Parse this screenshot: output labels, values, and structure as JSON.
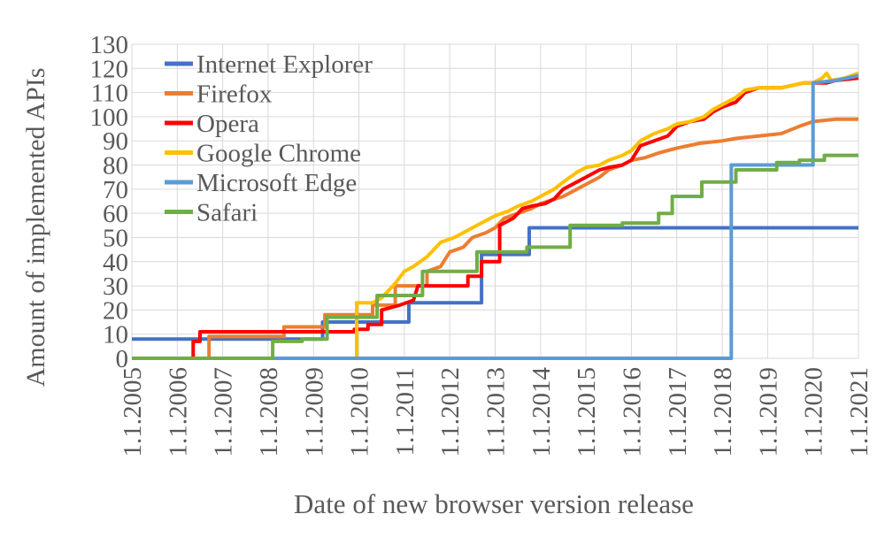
{
  "chart_data": {
    "type": "line",
    "title": "",
    "xlabel": "Date of new browser version release",
    "ylabel": "Amount of implemented APIs",
    "xlim": [
      2005,
      2021
    ],
    "ylim": [
      0,
      130
    ],
    "y_ticks": [
      0,
      10,
      20,
      30,
      40,
      50,
      60,
      70,
      80,
      90,
      100,
      110,
      120,
      130
    ],
    "x_ticks": [
      2005,
      2006,
      2007,
      2008,
      2009,
      2010,
      2011,
      2012,
      2013,
      2014,
      2015,
      2016,
      2017,
      2018,
      2019,
      2020,
      2021
    ],
    "x_tick_labels": [
      "1.1.2005",
      "1.1.2006",
      "1.1.2007",
      "1.1.2008",
      "1.1.2009",
      "1.1.2010",
      "1.1.2011",
      "1.1.2012",
      "1.1.2013",
      "1.1.2014",
      "1.1.2015",
      "1.1.2016",
      "1.1.2017",
      "1.1.2018",
      "1.1.2019",
      "1.1.2020",
      "1.1.2021"
    ],
    "grid": true,
    "legend_position": "top-left",
    "series": [
      {
        "name": "Internet Explorer",
        "color": "#4472C4",
        "points": [
          [
            2005.0,
            8
          ],
          [
            2009.2,
            8
          ],
          [
            2009.2,
            15
          ],
          [
            2011.1,
            15
          ],
          [
            2011.1,
            23
          ],
          [
            2012.7,
            23
          ],
          [
            2012.7,
            43
          ],
          [
            2013.75,
            43
          ],
          [
            2013.75,
            54
          ],
          [
            2021.0,
            54
          ]
        ]
      },
      {
        "name": "Firefox",
        "color": "#ED7D31",
        "points": [
          [
            2005.0,
            0
          ],
          [
            2006.7,
            0
          ],
          [
            2006.7,
            9
          ],
          [
            2008.35,
            9
          ],
          [
            2008.35,
            13
          ],
          [
            2009.25,
            13
          ],
          [
            2009.25,
            18
          ],
          [
            2010.3,
            18
          ],
          [
            2010.3,
            22
          ],
          [
            2010.8,
            22
          ],
          [
            2010.8,
            30
          ],
          [
            2011.5,
            30
          ],
          [
            2011.5,
            36
          ],
          [
            2011.8,
            38
          ],
          [
            2012.0,
            44
          ],
          [
            2012.3,
            46
          ],
          [
            2012.5,
            50
          ],
          [
            2012.8,
            52
          ],
          [
            2013.0,
            54
          ],
          [
            2013.2,
            58
          ],
          [
            2013.5,
            60
          ],
          [
            2013.8,
            62
          ],
          [
            2014.0,
            64
          ],
          [
            2014.5,
            67
          ],
          [
            2014.8,
            70
          ],
          [
            2015.0,
            72
          ],
          [
            2015.3,
            75
          ],
          [
            2015.5,
            78
          ],
          [
            2015.8,
            80
          ],
          [
            2016.0,
            82
          ],
          [
            2016.3,
            83
          ],
          [
            2016.6,
            85
          ],
          [
            2017.0,
            87
          ],
          [
            2017.5,
            89
          ],
          [
            2018.0,
            90
          ],
          [
            2018.3,
            91
          ],
          [
            2018.8,
            92
          ],
          [
            2019.3,
            93
          ],
          [
            2019.7,
            96
          ],
          [
            2020.0,
            98
          ],
          [
            2020.5,
            99
          ],
          [
            2021.0,
            99
          ]
        ]
      },
      {
        "name": "Opera",
        "color": "#FF0000",
        "points": [
          [
            2005.0,
            0
          ],
          [
            2006.35,
            0
          ],
          [
            2006.35,
            7
          ],
          [
            2006.5,
            7
          ],
          [
            2006.5,
            11
          ],
          [
            2009.9,
            11
          ],
          [
            2009.9,
            12
          ],
          [
            2010.2,
            12
          ],
          [
            2010.2,
            14
          ],
          [
            2010.5,
            14
          ],
          [
            2010.5,
            20
          ],
          [
            2010.9,
            22
          ],
          [
            2011.2,
            24
          ],
          [
            2011.3,
            30
          ],
          [
            2012.0,
            30
          ],
          [
            2012.4,
            30
          ],
          [
            2012.4,
            34
          ],
          [
            2012.7,
            34
          ],
          [
            2012.7,
            40
          ],
          [
            2013.1,
            40
          ],
          [
            2013.1,
            55
          ],
          [
            2013.4,
            58
          ],
          [
            2013.6,
            62
          ],
          [
            2013.8,
            63
          ],
          [
            2014.1,
            64
          ],
          [
            2014.3,
            66
          ],
          [
            2014.5,
            70
          ],
          [
            2014.8,
            73
          ],
          [
            2015.0,
            75
          ],
          [
            2015.3,
            78
          ],
          [
            2015.5,
            79
          ],
          [
            2015.8,
            80
          ],
          [
            2016.0,
            82
          ],
          [
            2016.2,
            88
          ],
          [
            2016.5,
            90
          ],
          [
            2016.8,
            92
          ],
          [
            2017.0,
            96
          ],
          [
            2017.3,
            98
          ],
          [
            2017.6,
            99
          ],
          [
            2017.8,
            102
          ],
          [
            2018.0,
            104
          ],
          [
            2018.3,
            106
          ],
          [
            2018.5,
            110
          ],
          [
            2018.8,
            112
          ],
          [
            2019.3,
            112
          ],
          [
            2019.8,
            114
          ],
          [
            2020.0,
            114
          ],
          [
            2020.3,
            114
          ],
          [
            2020.5,
            115
          ],
          [
            2021.0,
            116
          ]
        ]
      },
      {
        "name": "Google Chrome",
        "color": "#FFC000",
        "points": [
          [
            2005.0,
            0
          ],
          [
            2009.95,
            0
          ],
          [
            2009.95,
            23
          ],
          [
            2010.3,
            23
          ],
          [
            2010.5,
            25
          ],
          [
            2010.8,
            31
          ],
          [
            2011.0,
            36
          ],
          [
            2011.2,
            38
          ],
          [
            2011.5,
            42
          ],
          [
            2011.8,
            48
          ],
          [
            2012.1,
            50
          ],
          [
            2012.3,
            52
          ],
          [
            2012.5,
            54
          ],
          [
            2012.8,
            57
          ],
          [
            2013.0,
            59
          ],
          [
            2013.3,
            61
          ],
          [
            2013.5,
            63
          ],
          [
            2013.8,
            65
          ],
          [
            2014.0,
            67
          ],
          [
            2014.3,
            70
          ],
          [
            2014.5,
            73
          ],
          [
            2014.8,
            77
          ],
          [
            2015.0,
            79
          ],
          [
            2015.3,
            80
          ],
          [
            2015.5,
            82
          ],
          [
            2015.8,
            84
          ],
          [
            2016.0,
            86
          ],
          [
            2016.2,
            90
          ],
          [
            2016.5,
            93
          ],
          [
            2016.8,
            95
          ],
          [
            2017.0,
            97
          ],
          [
            2017.3,
            98
          ],
          [
            2017.6,
            100
          ],
          [
            2017.8,
            103
          ],
          [
            2018.0,
            105
          ],
          [
            2018.3,
            108
          ],
          [
            2018.5,
            111
          ],
          [
            2018.8,
            112
          ],
          [
            2019.3,
            112
          ],
          [
            2019.8,
            114
          ],
          [
            2020.0,
            114
          ],
          [
            2020.2,
            116
          ],
          [
            2020.3,
            118
          ],
          [
            2020.4,
            115
          ],
          [
            2020.7,
            116
          ],
          [
            2021.0,
            118
          ]
        ]
      },
      {
        "name": "Microsoft Edge",
        "color": "#5B9BD5",
        "points": [
          [
            2005.0,
            0
          ],
          [
            2018.2,
            0
          ],
          [
            2018.2,
            80
          ],
          [
            2020.0,
            80
          ],
          [
            2020.0,
            114
          ],
          [
            2020.5,
            115
          ],
          [
            2021.0,
            117
          ]
        ]
      },
      {
        "name": "Safari",
        "color": "#70AD47",
        "points": [
          [
            2005.0,
            0
          ],
          [
            2008.1,
            0
          ],
          [
            2008.1,
            7
          ],
          [
            2008.75,
            7
          ],
          [
            2008.75,
            8
          ],
          [
            2009.3,
            8
          ],
          [
            2009.3,
            17
          ],
          [
            2010.4,
            17
          ],
          [
            2010.4,
            26
          ],
          [
            2011.4,
            26
          ],
          [
            2011.4,
            36
          ],
          [
            2012.6,
            36
          ],
          [
            2012.6,
            44
          ],
          [
            2013.7,
            44
          ],
          [
            2013.7,
            46
          ],
          [
            2014.65,
            46
          ],
          [
            2014.65,
            55
          ],
          [
            2015.8,
            55
          ],
          [
            2015.8,
            56
          ],
          [
            2016.6,
            56
          ],
          [
            2016.6,
            60
          ],
          [
            2016.9,
            60
          ],
          [
            2016.9,
            67
          ],
          [
            2017.55,
            67
          ],
          [
            2017.55,
            73
          ],
          [
            2018.3,
            73
          ],
          [
            2018.3,
            78
          ],
          [
            2019.2,
            78
          ],
          [
            2019.2,
            81
          ],
          [
            2019.7,
            81
          ],
          [
            2019.7,
            82
          ],
          [
            2020.25,
            82
          ],
          [
            2020.25,
            84
          ],
          [
            2021.0,
            84
          ]
        ]
      }
    ]
  }
}
